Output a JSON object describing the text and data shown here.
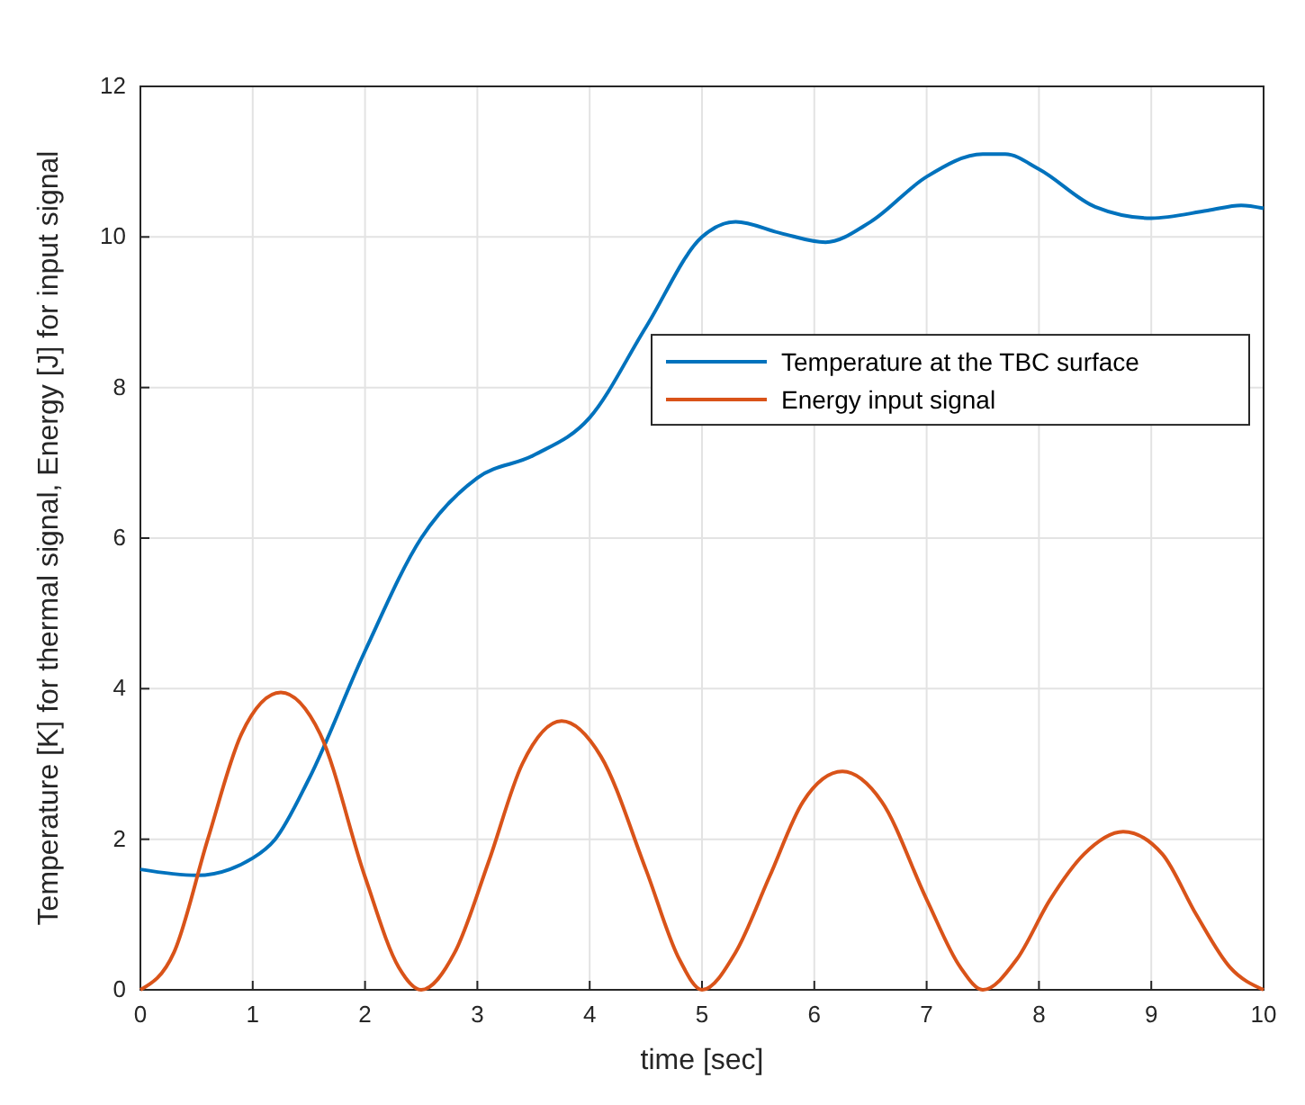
{
  "chart_data": {
    "type": "line",
    "xlabel": "time [sec]",
    "ylabel": "Temperature [K] for thermal signal, Energy [J] for input signal",
    "xlim": [
      0,
      10
    ],
    "ylim": [
      0,
      12
    ],
    "xticks": [
      0,
      1,
      2,
      3,
      4,
      5,
      6,
      7,
      8,
      9,
      10
    ],
    "yticks": [
      0,
      2,
      4,
      6,
      8,
      10,
      12
    ],
    "grid": true,
    "legend": "right",
    "marker": "none",
    "line_style": "solid",
    "series": [
      {
        "name": "Temperature at the TBC surface",
        "color": "#0072bd",
        "x": [
          0,
          0.5,
          1,
          1.2,
          1.5,
          2,
          2.5,
          3,
          3.5,
          4,
          4.5,
          5,
          5.3,
          5.7,
          6.1,
          6.5,
          7,
          7.5,
          7.7,
          8,
          8.5,
          9,
          9.5,
          9.8,
          10
        ],
        "values": [
          1.6,
          1.52,
          1.75,
          2.0,
          2.8,
          4.5,
          6.0,
          6.8,
          7.1,
          7.6,
          8.8,
          10.0,
          10.2,
          10.05,
          9.93,
          10.2,
          10.8,
          11.1,
          11.1,
          10.9,
          10.4,
          10.25,
          10.35,
          10.42,
          10.38
        ]
      },
      {
        "name": "Energy input signal",
        "color": "#d95319",
        "x": [
          0,
          0.3,
          0.6,
          0.9,
          1.25,
          1.6,
          2,
          2.3,
          2.5,
          2.8,
          3.1,
          3.4,
          3.75,
          4.1,
          4.5,
          4.8,
          5,
          5.3,
          5.6,
          5.9,
          6.25,
          6.6,
          7,
          7.3,
          7.5,
          7.8,
          8.1,
          8.4,
          8.75,
          9.1,
          9.4,
          9.7,
          10
        ],
        "values": [
          0,
          0.5,
          2.0,
          3.4,
          3.95,
          3.4,
          1.5,
          0.3,
          0,
          0.5,
          1.7,
          3.0,
          3.57,
          3.1,
          1.6,
          0.4,
          0,
          0.5,
          1.5,
          2.5,
          2.9,
          2.5,
          1.2,
          0.3,
          0,
          0.4,
          1.2,
          1.8,
          2.1,
          1.8,
          1.0,
          0.3,
          0
        ]
      }
    ]
  }
}
